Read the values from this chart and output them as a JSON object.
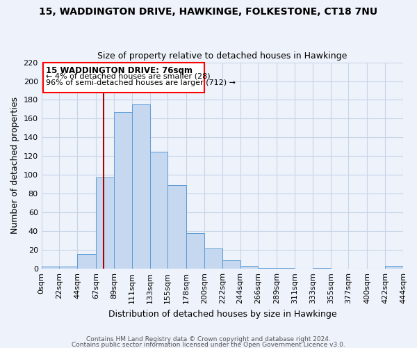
{
  "title": "15, WADDINGTON DRIVE, HAWKINGE, FOLKESTONE, CT18 7NU",
  "subtitle": "Size of property relative to detached houses in Hawkinge",
  "xlabel": "Distribution of detached houses by size in Hawkinge",
  "ylabel": "Number of detached properties",
  "bar_edges": [
    0,
    22,
    44,
    67,
    89,
    111,
    133,
    155,
    178,
    200,
    222,
    244,
    266,
    289,
    311,
    333,
    355,
    377,
    400,
    422,
    444
  ],
  "bar_heights": [
    2,
    2,
    16,
    97,
    167,
    175,
    125,
    89,
    38,
    22,
    9,
    3,
    1,
    1,
    0,
    1,
    0,
    0,
    0,
    3
  ],
  "bar_color": "#c5d8f0",
  "bar_edge_color": "#5b9bd5",
  "ylim": [
    0,
    220
  ],
  "yticks": [
    0,
    20,
    40,
    60,
    80,
    100,
    120,
    140,
    160,
    180,
    200,
    220
  ],
  "xtick_labels": [
    "0sqm",
    "22sqm",
    "44sqm",
    "67sqm",
    "89sqm",
    "111sqm",
    "133sqm",
    "155sqm",
    "178sqm",
    "200sqm",
    "222sqm",
    "244sqm",
    "266sqm",
    "289sqm",
    "311sqm",
    "333sqm",
    "355sqm",
    "377sqm",
    "400sqm",
    "422sqm",
    "444sqm"
  ],
  "vline_x": 76,
  "vline_color": "#aa0000",
  "annotation_title": "15 WADDINGTON DRIVE: 76sqm",
  "annotation_line1": "← 4% of detached houses are smaller (28)",
  "annotation_line2": "96% of semi-detached houses are larger (712) →",
  "footer1": "Contains HM Land Registry data © Crown copyright and database right 2024.",
  "footer2": "Contains public sector information licensed under the Open Government Licence v3.0.",
  "background_color": "#eef2fa",
  "grid_color": "#c8d4e8"
}
